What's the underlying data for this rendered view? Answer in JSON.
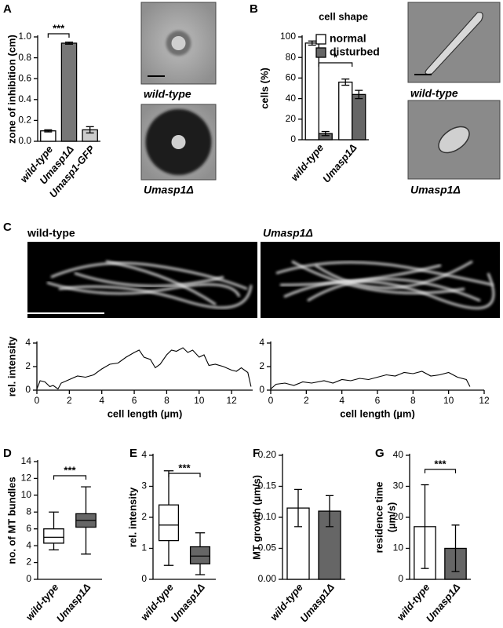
{
  "chart_data": [
    {
      "type": "bar",
      "panel": "A",
      "ylabel": "zone of inhibition (cm)",
      "categories": [
        "wild-type",
        "Umasp1Δ",
        "Umasp1-GFP"
      ],
      "values": [
        0.1,
        0.94,
        0.11
      ],
      "errors": [
        0.01,
        0.01,
        0.03
      ],
      "colors": [
        "#ffffff",
        "#777777",
        "#cccccc"
      ],
      "ylim": [
        0,
        1.0
      ],
      "yticks": [
        {
          "value": 0,
          "label": "0.0"
        },
        0.2,
        0.4,
        0.6,
        0.8,
        {
          "value": 1,
          "label": "1.0"
        }
      ],
      "annotations": [
        "***"
      ],
      "image_labels": [
        "wild-type",
        "Umasp1Δ"
      ]
    },
    {
      "type": "bar",
      "panel": "B",
      "title": "cell shape",
      "ylabel": "cells (%)",
      "categories": [
        "wild-type",
        "Umasp1Δ"
      ],
      "series": [
        {
          "name": "normal",
          "color": "#ffffff",
          "values": [
            94,
            56
          ],
          "errors": [
            2,
            3
          ]
        },
        {
          "name": "disturbed",
          "color": "#666666",
          "values": [
            6,
            44
          ],
          "errors": [
            2,
            4
          ]
        }
      ],
      "ylim": [
        0,
        100
      ],
      "yticks": [
        0,
        20,
        40,
        60,
        80,
        100
      ],
      "annotations": [
        "*"
      ],
      "image_labels": [
        "wild-type",
        "Umasp1Δ"
      ]
    },
    {
      "type": "line",
      "panel": "C",
      "image_label": "wild-type",
      "xlabel": "cell length (µm)",
      "ylabel": "rel. intensity",
      "x": [
        0,
        0.2,
        0.5,
        0.8,
        1.0,
        1.3,
        1.5,
        2.0,
        2.5,
        3.0,
        3.5,
        4.0,
        4.5,
        5.0,
        5.5,
        6.0,
        6.3,
        6.6,
        7.0,
        7.3,
        7.6,
        8.0,
        8.3,
        8.6,
        9.0,
        9.3,
        9.6,
        10.0,
        10.3,
        10.6,
        11.0,
        11.5,
        12.0,
        12.3,
        12.6,
        13.0,
        13.2
      ],
      "values": [
        0.1,
        0.8,
        0.7,
        0.3,
        0.4,
        0.1,
        0.6,
        0.9,
        1.2,
        1.1,
        1.3,
        1.8,
        2.2,
        2.3,
        2.8,
        3.2,
        3.4,
        2.8,
        2.6,
        1.9,
        2.2,
        3.0,
        3.4,
        3.3,
        3.6,
        3.2,
        3.4,
        2.8,
        3.0,
        2.1,
        2.2,
        2.0,
        1.7,
        1.6,
        1.9,
        1.5,
        0.3
      ],
      "xlim": [
        0,
        13.3
      ],
      "xticks": [
        0,
        2,
        4,
        6,
        8,
        10,
        12
      ],
      "ylim": [
        0,
        4
      ],
      "yticks": [
        0,
        2,
        4
      ]
    },
    {
      "type": "line",
      "image_label": "Umasp1Δ",
      "xlabel": "cell length (µm)",
      "x": [
        0,
        0.3,
        0.8,
        1.3,
        1.8,
        2.3,
        3.0,
        3.5,
        4.0,
        4.5,
        5.0,
        5.5,
        6.0,
        6.5,
        7.0,
        7.5,
        8.0,
        8.5,
        9.0,
        9.5,
        10.0,
        10.5,
        11.0,
        11.2
      ],
      "values": [
        0.1,
        0.5,
        0.6,
        0.4,
        0.7,
        0.6,
        0.8,
        0.6,
        0.9,
        0.8,
        1.0,
        0.9,
        1.1,
        1.3,
        1.2,
        1.5,
        1.4,
        1.6,
        1.2,
        1.3,
        1.5,
        1.1,
        0.9,
        0.3
      ],
      "xlim": [
        0,
        12
      ],
      "xticks": [
        0,
        2,
        4,
        6,
        8,
        10,
        12
      ],
      "ylim": [
        0,
        4
      ],
      "yticks": [
        0,
        2,
        4
      ]
    },
    {
      "type": "box",
      "panel": "D",
      "ylabel": "no. of MT bundles",
      "categories": [
        "wild-type",
        "Umasp1Δ"
      ],
      "min": [
        3.5,
        3
      ],
      "q1": [
        4.3,
        6.2
      ],
      "median": [
        5,
        7
      ],
      "q3": [
        6,
        7.8
      ],
      "max": [
        8,
        11
      ],
      "colors": [
        "#ffffff",
        "#666666"
      ],
      "ylim": [
        0,
        14
      ],
      "yticks": [
        0,
        2,
        4,
        6,
        8,
        10,
        12,
        14
      ],
      "annotations": [
        "***"
      ]
    },
    {
      "type": "box",
      "panel": "E",
      "ylabel": "rel. intensity",
      "categories": [
        "wild-type",
        "Umasp1Δ"
      ],
      "min": [
        0.45,
        0.15
      ],
      "q1": [
        1.25,
        0.5
      ],
      "median": [
        1.75,
        0.75
      ],
      "q3": [
        2.4,
        1.05
      ],
      "max": [
        3.5,
        1.5
      ],
      "colors": [
        "#ffffff",
        "#666666"
      ],
      "ylim": [
        0,
        4
      ],
      "yticks": [
        0,
        1,
        2,
        3,
        4
      ],
      "annotations": [
        "***"
      ]
    },
    {
      "type": "bar",
      "panel": "F",
      "ylabel": "MT growth (µm/s)",
      "categories": [
        "wild-type",
        "Umasp1Δ"
      ],
      "values": [
        0.115,
        0.11
      ],
      "errors": [
        0.03,
        0.025
      ],
      "colors": [
        "#ffffff",
        "#666666"
      ],
      "ylim": [
        0,
        0.2
      ],
      "yticks": [
        {
          "value": 0,
          "label": "0.00"
        },
        {
          "value": 0.05,
          "label": "0.05"
        },
        {
          "value": 0.1,
          "label": "0.10"
        },
        {
          "value": 0.15,
          "label": "0.15"
        },
        {
          "value": 0.2,
          "label": "0.20"
        }
      ]
    },
    {
      "type": "bar",
      "panel": "G",
      "ylabel": [
        "residence time",
        "(µm/s)"
      ],
      "categories": [
        "wild-type",
        "Umasp1Δ"
      ],
      "values": [
        17,
        10
      ],
      "errors": [
        13.5,
        7.5
      ],
      "colors": [
        "#ffffff",
        "#666666"
      ],
      "ylim": [
        0,
        40
      ],
      "yticks": [
        0,
        10,
        20,
        30,
        40
      ],
      "annotations": [
        "***"
      ]
    }
  ]
}
